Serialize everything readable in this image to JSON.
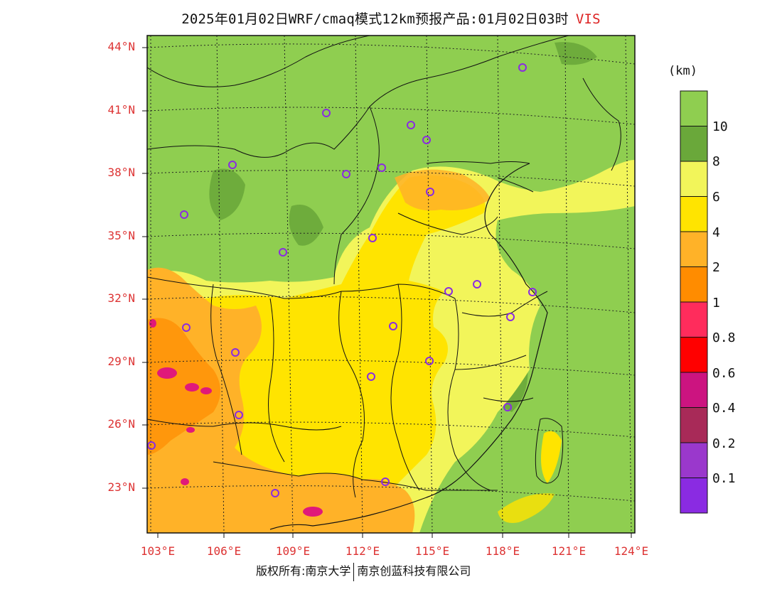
{
  "title": "2025年01月02日WRF/cmaq模式12km预报产品:01月02日03时",
  "variable": "VIS",
  "unit": "(km)",
  "credit": {
    "left": "版权所有:南京大学",
    "right": "南京创蓝科技有限公司"
  },
  "lat_labels": [
    "44°N",
    "41°N",
    "38°N",
    "35°N",
    "32°N",
    "29°N",
    "26°N",
    "23°N"
  ],
  "lon_labels": [
    "103°E",
    "106°E",
    "109°E",
    "112°E",
    "115°E",
    "118°E",
    "121°E",
    "124°E"
  ],
  "legend": {
    "labels": [
      "10",
      "8",
      "6",
      "4",
      "2",
      "1",
      "0.8",
      "0.6",
      "0.4",
      "0.2",
      "0.1"
    ],
    "colors": [
      "#8fce50",
      "#6aa83a",
      "#f2f55a",
      "#ffe400",
      "#ffb228",
      "#ff8c00",
      "#ff2c5c",
      "#ff0000",
      "#cc1480",
      "#a82a58",
      "#9a38cc",
      "#8a2be2"
    ]
  },
  "colors": {
    "land_clear": "#8fce50",
    "land_dark": "#6aa83a",
    "haze_light": "#f2f55a",
    "haze_yellow": "#ffe400",
    "haze_orange": "#ffb228",
    "haze_dark": "#ff8c00",
    "magenta": "#e0197a",
    "station_marker": "#8a2be2",
    "label_red": "#dd3333"
  },
  "stations_icon": "circle-station-icon"
}
